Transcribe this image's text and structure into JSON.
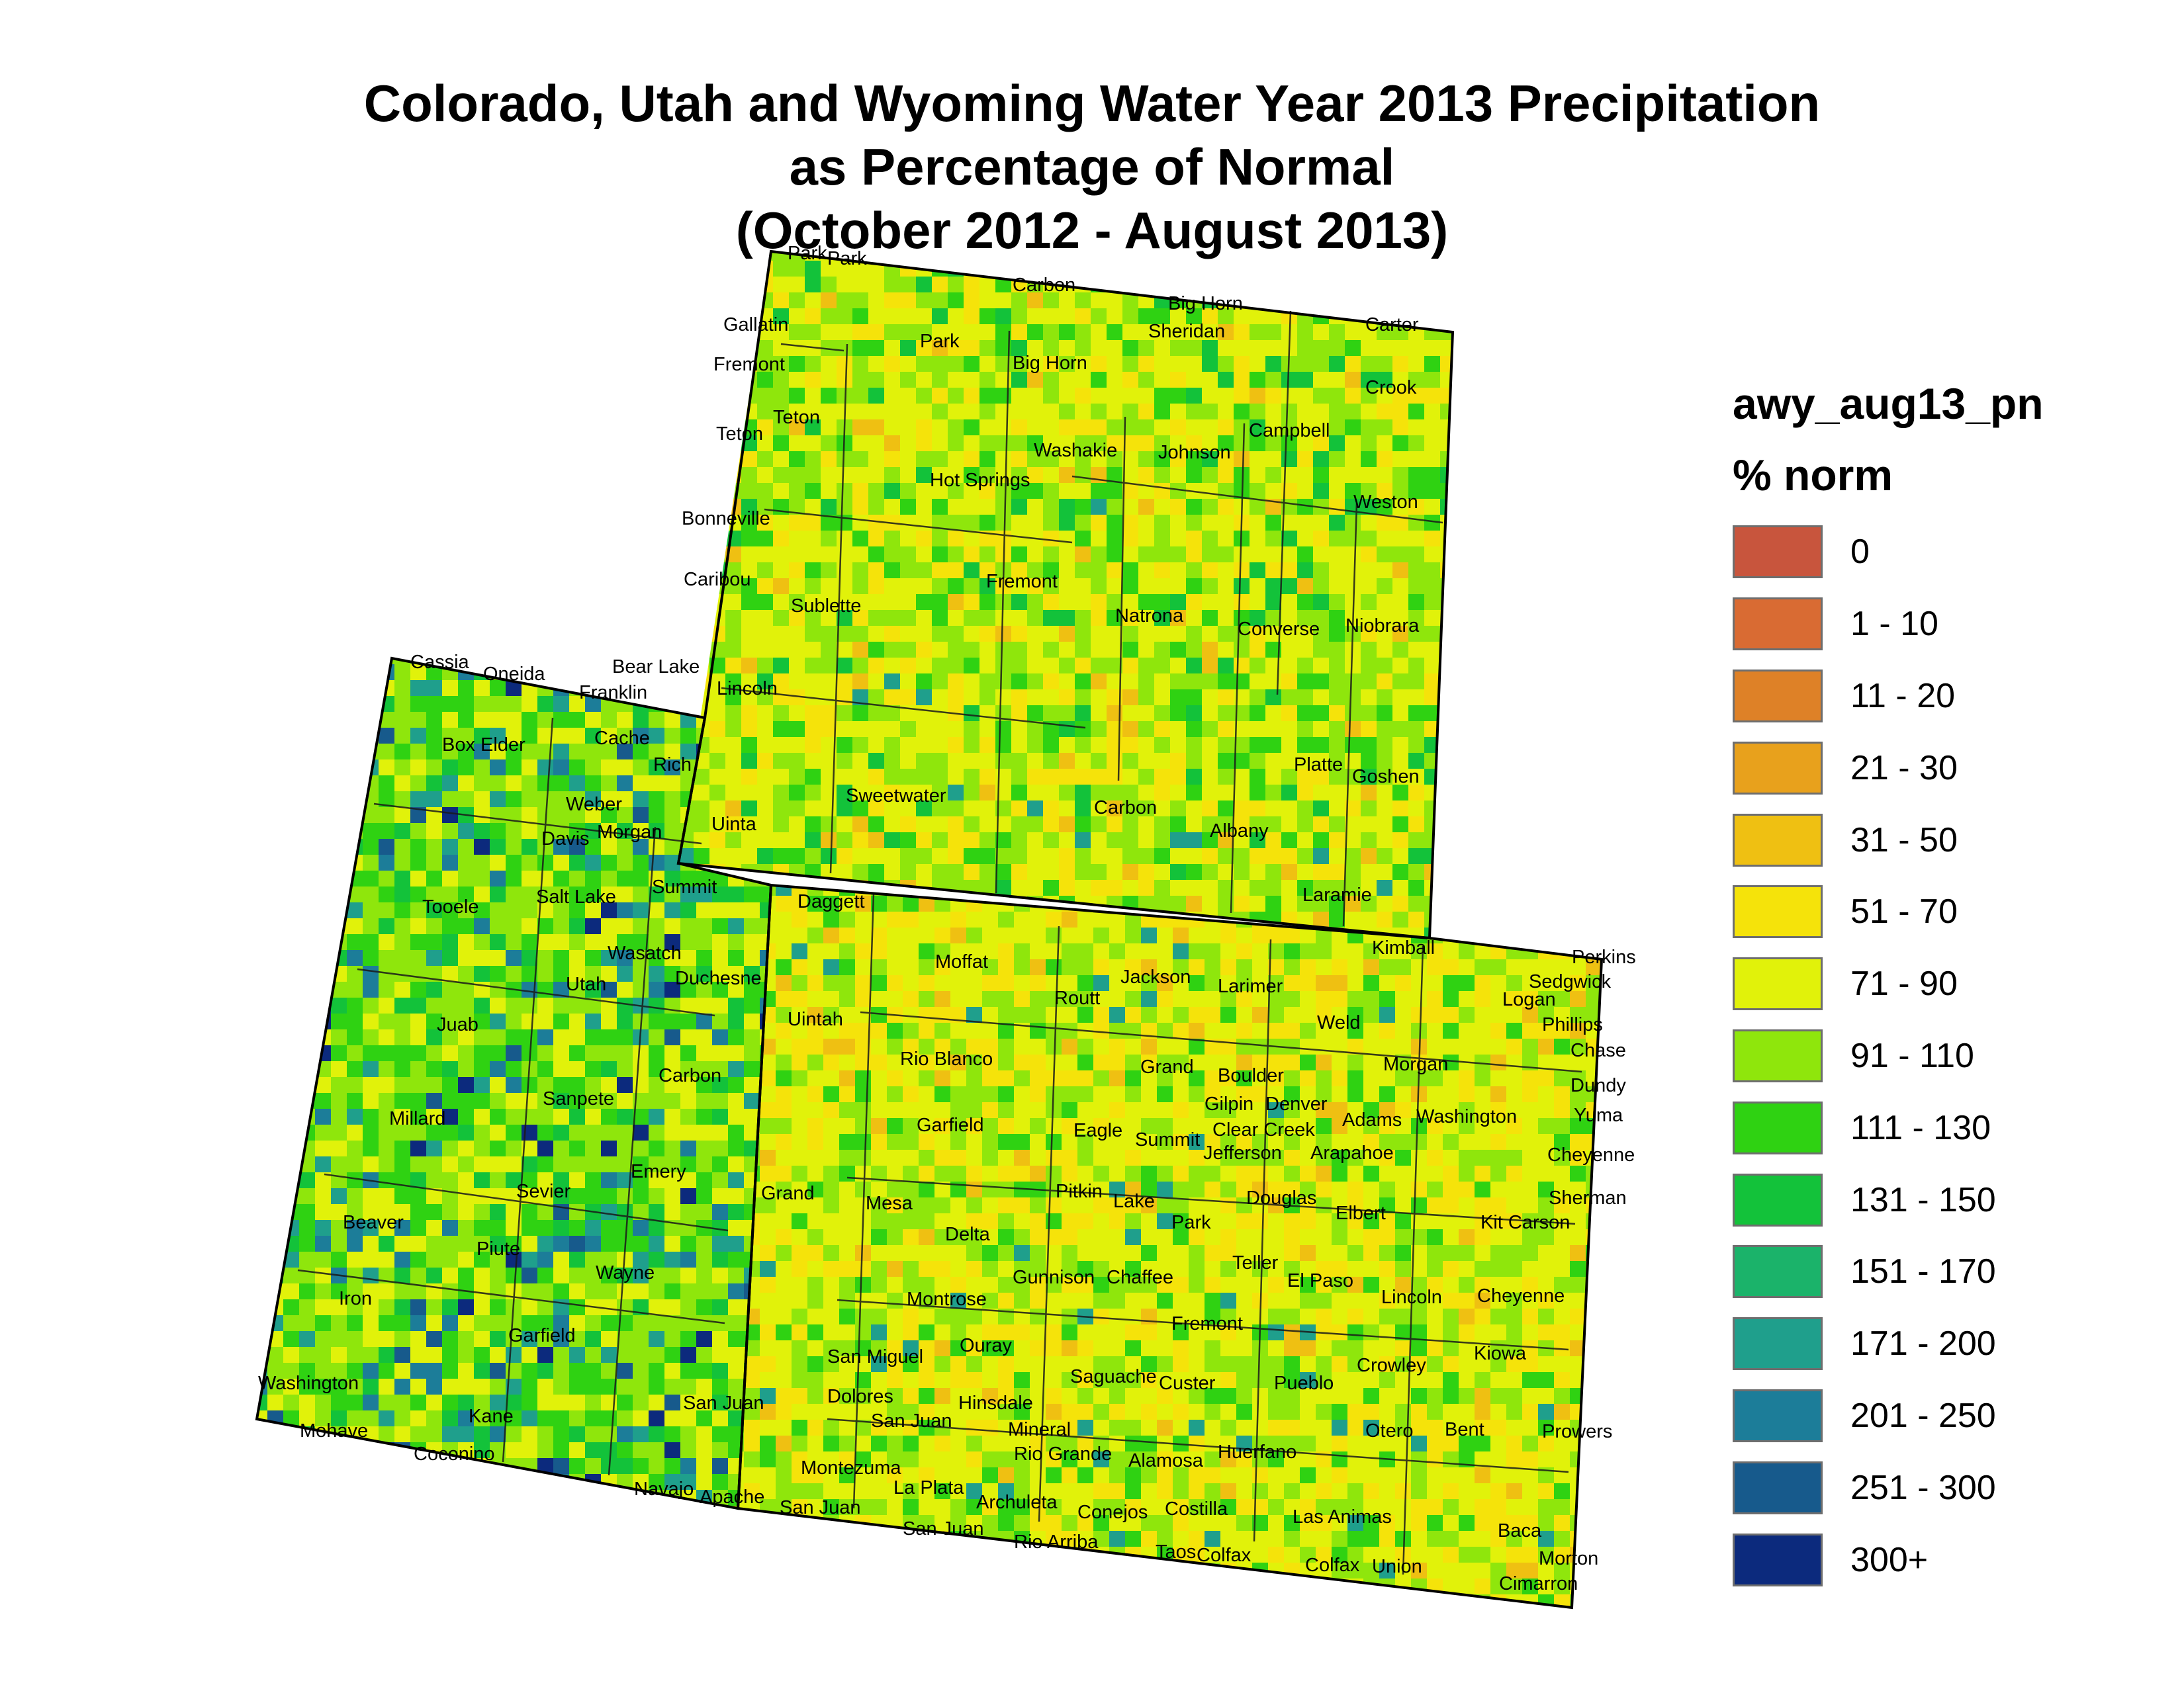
{
  "title": {
    "line1": "Colorado, Utah and Wyoming Water Year 2013 Precipitation",
    "line2": "as Percentage of Normal",
    "line3": "(October 2012 - August 2013)"
  },
  "legend": {
    "layer_name": "awy_aug13_pn",
    "field_label": "% norm",
    "classes": [
      {
        "label": "0",
        "color": "#c8553d"
      },
      {
        "label": "1 - 10",
        "color": "#d96b33"
      },
      {
        "label": "11 - 20",
        "color": "#de8127"
      },
      {
        "label": "21 - 30",
        "color": "#e8a11c"
      },
      {
        "label": "31 - 50",
        "color": "#efc012"
      },
      {
        "label": "51 - 70",
        "color": "#f5e30a"
      },
      {
        "label": "71 - 90",
        "color": "#e1f20a"
      },
      {
        "label": "91 - 110",
        "color": "#8fe60c"
      },
      {
        "label": "111 - 130",
        "color": "#2fd212"
      },
      {
        "label": "131 - 150",
        "color": "#13c23a"
      },
      {
        "label": "151 - 170",
        "color": "#1bb36a"
      },
      {
        "label": "171 - 200",
        "color": "#1f9f8c"
      },
      {
        "label": "201 - 250",
        "color": "#1c7d99"
      },
      {
        "label": "251 - 300",
        "color": "#175a8c"
      },
      {
        "label": "300+",
        "color": "#0c2a7d"
      }
    ]
  },
  "map": {
    "states_visible": [
      "Wyoming",
      "Utah",
      "Colorado"
    ],
    "county_labels": [
      "Park",
      "Park",
      "Carbon",
      "Big Horn",
      "Sheridan",
      "Carter",
      "Gallatin",
      "Fremont",
      "Park",
      "Big Horn",
      "Crook",
      "Teton",
      "Teton",
      "Washakie",
      "Johnson",
      "Campbell",
      "Hot Springs",
      "Weston",
      "Bonneville",
      "Caribou",
      "Fremont",
      "Natrona",
      "Converse",
      "Niobrara",
      "Sublette",
      "Cassia",
      "Oneida",
      "Bear Lake",
      "Franklin",
      "Lincoln",
      "Cache",
      "Box Elder",
      "Rich",
      "Platte",
      "Goshen",
      "Sweetwater",
      "Carbon",
      "Weber",
      "Uinta",
      "Albany",
      "Davis",
      "Morgan",
      "Summit",
      "Daggett",
      "Laramie",
      "Tooele",
      "Salt Lake",
      "Wasatch",
      "Kimball",
      "Perkins",
      "Moffat",
      "Jackson",
      "Larimer",
      "Sedgwick",
      "Duchesne",
      "Routt",
      "Logan",
      "Utah",
      "Weld",
      "Phillips",
      "Uintah",
      "Juab",
      "Chase",
      "Rio Blanco",
      "Grand",
      "Boulder",
      "Morgan",
      "Carbon",
      "Dundy",
      "Gilpin",
      "Denver",
      "Sanpete",
      "Adams",
      "Washington",
      "Yuma",
      "Millard",
      "Garfield",
      "Eagle",
      "Clear Creek",
      "Summit",
      "Jefferson",
      "Arapahoe",
      "Emery",
      "Cheyenne",
      "Grand",
      "Sevier",
      "Pitkin",
      "Douglas",
      "Mesa",
      "Lake",
      "Elbert",
      "Sherman",
      "Kit Carson",
      "Beaver",
      "Park",
      "Delta",
      "Piute",
      "Wayne",
      "Teller",
      "Gunnison",
      "Chaffee",
      "El Paso",
      "Iron",
      "Montrose",
      "Lincoln",
      "Cheyenne",
      "Garfield",
      "Fremont",
      "Ouray",
      "San Miguel",
      "Kiowa",
      "Crowley",
      "Saguache",
      "Washington",
      "Custer",
      "Pueblo",
      "Dolores",
      "San Juan",
      "Hinsdale",
      "Kane",
      "San Juan",
      "Mineral",
      "Bent",
      "Otero",
      "Prowers",
      "Mohave",
      "Coconino",
      "Huerfano",
      "Rio Grande",
      "Alamosa",
      "Montezuma",
      "Navajo",
      "La Plata",
      "Apache",
      "San Juan",
      "Archuleta",
      "Conejos",
      "Costilla",
      "Las Animas",
      "Baca",
      "San Juan",
      "Rio Arriba",
      "Taos",
      "Colfax",
      "Colfax",
      "Union",
      "Morton",
      "Cimarron"
    ]
  }
}
